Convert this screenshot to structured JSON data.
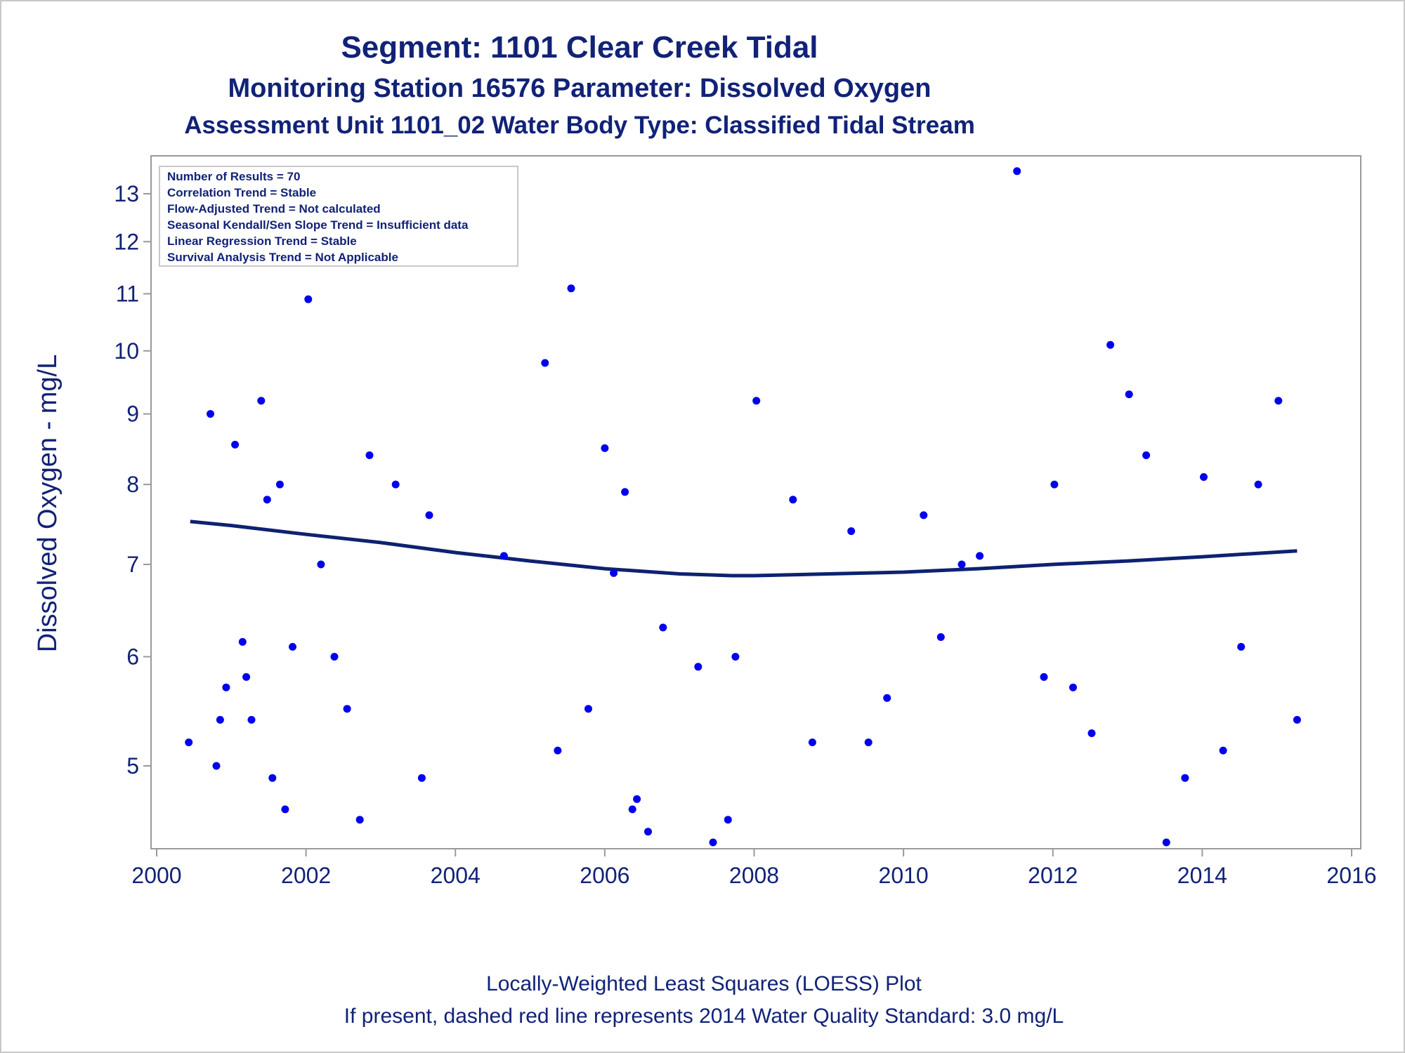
{
  "titles": [
    "Segment: 1101  Clear Creek Tidal",
    "Monitoring Station 16576 Parameter: Dissolved Oxygen",
    "Assessment Unit 1101_02   Water Body Type: Classified Tidal Stream"
  ],
  "footnotes": [
    "Locally-Weighted Least Squares (LOESS) Plot",
    "If present, dashed red line represents 2014 Water Quality Standard: 3.0 mg/L"
  ],
  "inset": [
    "Number of Results = 70",
    "Correlation Trend = Stable",
    "Flow-Adjusted Trend = Not calculated",
    "Seasonal Kendall/Sen Slope Trend = Insufficient data",
    "Linear Regression Trend = Stable",
    "Survival Analysis Trend = Not Applicable"
  ],
  "colors": {
    "points": "#0000ee",
    "loess": "#0d2270",
    "text": "#112277",
    "axis": "#9a9a9a"
  },
  "chart_data": {
    "type": "scatter",
    "xlabel": "",
    "ylabel": "Dissolved Oxygen - mg/L",
    "xlim": [
      2000,
      2016
    ],
    "ylim": [
      4.3,
      13.8
    ],
    "yscale": "log",
    "xticks": [
      2000,
      2002,
      2004,
      2006,
      2008,
      2010,
      2012,
      2014,
      2016
    ],
    "yticks": [
      5,
      6,
      7,
      8,
      9,
      10,
      11,
      12,
      13
    ],
    "grid": false,
    "legend": "none",
    "points": [
      [
        2000.43,
        5.2
      ],
      [
        2000.57,
        11.6
      ],
      [
        2000.67,
        12.8
      ],
      [
        2000.72,
        9.0
      ],
      [
        2000.8,
        5.0
      ],
      [
        2000.85,
        5.4
      ],
      [
        2000.93,
        5.7
      ],
      [
        2001.05,
        8.55
      ],
      [
        2001.15,
        6.15
      ],
      [
        2001.2,
        5.8
      ],
      [
        2001.27,
        5.4
      ],
      [
        2001.4,
        9.2
      ],
      [
        2001.48,
        7.8
      ],
      [
        2001.55,
        4.9
      ],
      [
        2001.65,
        8.0
      ],
      [
        2001.72,
        4.65
      ],
      [
        2001.82,
        6.1
      ],
      [
        2002.03,
        10.9
      ],
      [
        2002.2,
        7.0
      ],
      [
        2002.38,
        6.0
      ],
      [
        2002.55,
        5.5
      ],
      [
        2002.72,
        4.57
      ],
      [
        2002.85,
        8.4
      ],
      [
        2003.08,
        11.9
      ],
      [
        2003.2,
        8.0
      ],
      [
        2003.35,
        11.6
      ],
      [
        2003.55,
        4.9
      ],
      [
        2003.65,
        7.6
      ],
      [
        2004.65,
        7.1
      ],
      [
        2005.2,
        9.8
      ],
      [
        2005.37,
        5.13
      ],
      [
        2005.55,
        11.1
      ],
      [
        2005.78,
        5.5
      ],
      [
        2006.0,
        8.5
      ],
      [
        2006.12,
        6.9
      ],
      [
        2006.27,
        7.9
      ],
      [
        2006.37,
        4.65
      ],
      [
        2006.43,
        4.73
      ],
      [
        2006.58,
        4.48
      ],
      [
        2006.78,
        6.3
      ],
      [
        2007.25,
        5.9
      ],
      [
        2007.45,
        4.4
      ],
      [
        2007.65,
        4.57
      ],
      [
        2007.75,
        6.0
      ],
      [
        2008.03,
        9.2
      ],
      [
        2008.52,
        7.8
      ],
      [
        2008.78,
        5.2
      ],
      [
        2009.3,
        7.4
      ],
      [
        2009.53,
        5.2
      ],
      [
        2009.78,
        5.6
      ],
      [
        2010.27,
        7.6
      ],
      [
        2010.5,
        6.2
      ],
      [
        2010.78,
        7.0
      ],
      [
        2011.02,
        7.1
      ],
      [
        2011.52,
        13.5
      ],
      [
        2011.88,
        5.8
      ],
      [
        2012.02,
        8.0
      ],
      [
        2012.27,
        5.7
      ],
      [
        2012.52,
        5.28
      ],
      [
        2012.77,
        10.1
      ],
      [
        2013.02,
        9.3
      ],
      [
        2013.25,
        8.4
      ],
      [
        2013.52,
        4.4
      ],
      [
        2013.77,
        4.9
      ],
      [
        2014.02,
        8.1
      ],
      [
        2014.28,
        5.13
      ],
      [
        2014.52,
        6.1
      ],
      [
        2014.75,
        8.0
      ],
      [
        2015.02,
        9.2
      ],
      [
        2015.27,
        5.4
      ]
    ],
    "loess": [
      [
        2000.45,
        7.52
      ],
      [
        2001.0,
        7.47
      ],
      [
        2002.0,
        7.36
      ],
      [
        2003.0,
        7.26
      ],
      [
        2004.0,
        7.14
      ],
      [
        2005.0,
        7.04
      ],
      [
        2006.0,
        6.95
      ],
      [
        2007.0,
        6.89
      ],
      [
        2007.7,
        6.87
      ],
      [
        2008.0,
        6.87
      ],
      [
        2009.0,
        6.89
      ],
      [
        2010.0,
        6.91
      ],
      [
        2011.0,
        6.95
      ],
      [
        2012.0,
        7.0
      ],
      [
        2013.0,
        7.04
      ],
      [
        2014.0,
        7.09
      ],
      [
        2015.27,
        7.16
      ]
    ]
  }
}
